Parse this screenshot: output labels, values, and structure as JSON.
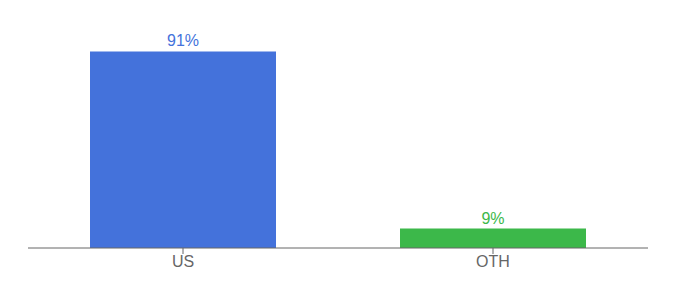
{
  "chart_data": {
    "type": "bar",
    "categories": [
      "US",
      "OTH"
    ],
    "values": [
      91,
      9
    ],
    "value_labels": [
      "91%",
      "9%"
    ],
    "colors": [
      "#4472db",
      "#3cb84a"
    ],
    "ylim": [
      0,
      100
    ],
    "data_labels": true,
    "tick_labels": "x",
    "grid": false
  }
}
